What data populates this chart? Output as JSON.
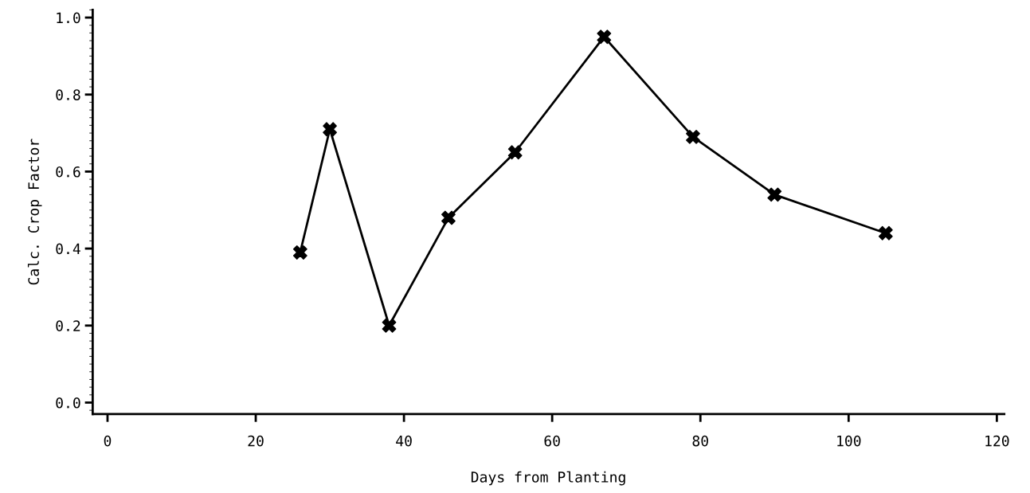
{
  "chart_data": {
    "type": "line",
    "xlabel": "Days from Planting",
    "ylabel": "Calc. Crop Factor",
    "x": [
      26,
      30,
      38,
      46,
      55,
      67,
      79,
      90,
      105
    ],
    "series": [
      {
        "color": "#000000",
        "values": [
          0.39,
          0.71,
          0.2,
          0.48,
          0.65,
          0.95,
          0.69,
          0.54,
          0.44
        ]
      }
    ],
    "xlim": [
      -2,
      121
    ],
    "ylim": [
      -0.03,
      1.02
    ],
    "xticks": [
      0,
      20,
      40,
      60,
      80,
      100,
      120
    ],
    "yticks": [
      {
        "value": 0,
        "label": "0.0"
      },
      {
        "value": 0.2,
        "label": "0.2"
      },
      {
        "value": 0.4,
        "label": "0.4"
      },
      {
        "value": 0.6,
        "label": "0.6"
      },
      {
        "value": 0.8,
        "label": "0.8"
      },
      {
        "value": 1.0,
        "label": "1.0"
      }
    ],
    "grid": false,
    "legend": false,
    "marker": "cross",
    "line_style": "solid"
  }
}
